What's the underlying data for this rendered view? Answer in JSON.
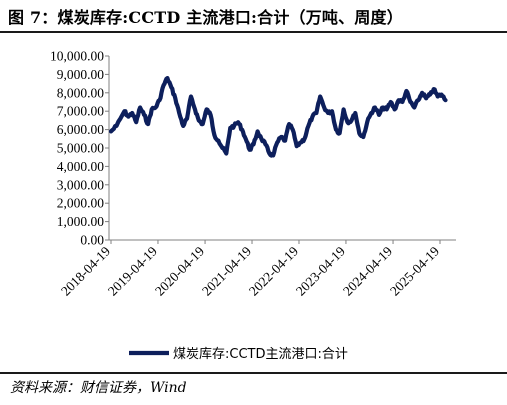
{
  "title": "图 7：煤炭库存:CCTD 主流港口:合计（万吨、周度）",
  "source": "资料来源：财信证券，Wind",
  "colors": {
    "series": "#0d1f5c",
    "axis": "#808080"
  },
  "chart_data": {
    "type": "line",
    "title": "",
    "xlabel": "",
    "ylabel": "",
    "ylim": [
      0,
      10000
    ],
    "yticks": [
      "0.00",
      "1,000.00",
      "2,000.00",
      "3,000.00",
      "4,000.00",
      "5,000.00",
      "6,000.00",
      "7,000.00",
      "8,000.00",
      "9,000.00",
      "10,000.00"
    ],
    "xticks": [
      "2018-04-19",
      "2019-04-19",
      "2020-04-19",
      "2021-04-19",
      "2022-04-19",
      "2023-04-19",
      "2024-04-19",
      "2025-04-19"
    ],
    "grid": false,
    "legend_position": "bottom",
    "series": [
      {
        "name": "煤炭库存:CCTD主流港口:合计",
        "x": [
          "2018-04-19",
          "2018-06-01",
          "2018-08-01",
          "2018-09-01",
          "2018-10-01",
          "2018-11-01",
          "2018-12-01",
          "2019-01-01",
          "2019-02-01",
          "2019-03-01",
          "2019-04-01",
          "2019-05-01",
          "2019-06-01",
          "2019-07-01",
          "2019-08-01",
          "2019-09-01",
          "2019-10-01",
          "2019-11-01",
          "2019-12-01",
          "2020-01-01",
          "2020-02-01",
          "2020-03-01",
          "2020-04-01",
          "2020-05-01",
          "2020-06-01",
          "2020-07-01",
          "2020-08-01",
          "2020-09-01",
          "2020-10-01",
          "2020-11-01",
          "2020-12-01",
          "2021-01-01",
          "2021-02-01",
          "2021-03-01",
          "2021-04-01",
          "2021-05-01",
          "2021-06-01",
          "2021-07-01",
          "2021-08-01",
          "2021-09-01",
          "2021-10-01",
          "2021-11-01",
          "2021-12-01",
          "2022-01-01",
          "2022-02-01",
          "2022-03-01",
          "2022-04-01",
          "2022-05-01",
          "2022-06-01",
          "2022-07-01",
          "2022-08-01",
          "2022-09-01",
          "2022-10-01",
          "2022-11-01",
          "2022-12-01",
          "2023-01-01",
          "2023-02-01",
          "2023-03-01",
          "2023-04-01",
          "2023-05-01",
          "2023-06-01",
          "2023-07-01",
          "2023-08-01",
          "2023-09-01",
          "2023-10-01",
          "2023-11-01",
          "2023-12-01",
          "2024-01-01",
          "2024-02-01",
          "2024-03-01",
          "2024-04-01",
          "2024-05-01",
          "2024-06-01",
          "2024-07-01",
          "2024-08-01",
          "2024-09-01",
          "2024-10-01",
          "2024-11-01",
          "2024-12-01",
          "2025-01-01",
          "2025-02-01",
          "2025-03-01",
          "2025-04-01",
          "2025-05-01",
          "2025-06-01"
        ],
        "values": [
          5900,
          6200,
          7000,
          6700,
          6900,
          6400,
          7200,
          6800,
          6300,
          7100,
          7200,
          7600,
          8400,
          8800,
          8300,
          7700,
          6900,
          6200,
          6600,
          7800,
          7100,
          6500,
          6300,
          7100,
          6800,
          5700,
          5400,
          5000,
          4700,
          6100,
          6200,
          6400,
          6000,
          5500,
          4900,
          5200,
          5900,
          5500,
          5200,
          4700,
          4600,
          5300,
          5600,
          5400,
          6300,
          6000,
          5100,
          5300,
          5500,
          6200,
          6700,
          6900,
          7800,
          7200,
          6900,
          7000,
          6000,
          5800,
          7100,
          6400,
          6500,
          6900,
          5800,
          5600,
          6400,
          6900,
          7200,
          6800,
          7200,
          7100,
          7500,
          7100,
          7600,
          7500,
          8100,
          7500,
          7200,
          7600,
          8000,
          7700,
          7900,
          8200,
          7800,
          7900,
          7600
        ]
      }
    ]
  }
}
